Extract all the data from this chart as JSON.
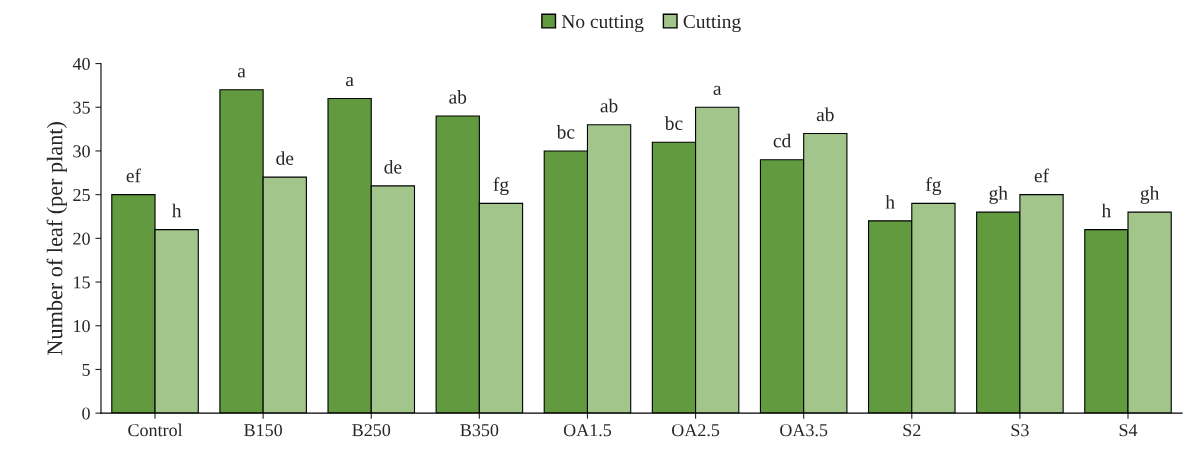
{
  "chart_data": {
    "type": "bar",
    "categories": [
      "Control",
      "B150",
      "B250",
      "B350",
      "OA1.5",
      "OA2.5",
      "OA3.5",
      "S2",
      "S3",
      "S4"
    ],
    "series": [
      {
        "name": "No cutting",
        "color": "#629a40",
        "values": [
          25,
          37,
          36,
          34,
          30,
          31,
          29,
          22,
          23,
          21
        ]
      },
      {
        "name": "Cutting",
        "color": "#a2c58b",
        "values": [
          21,
          27,
          26,
          24,
          33,
          35,
          32,
          24,
          25,
          23
        ]
      }
    ],
    "ylabel": "Number of leaf (per plant)",
    "ylim": [
      0,
      40
    ],
    "yticks": [
      0,
      5,
      10,
      15,
      20,
      25,
      30,
      35,
      40
    ],
    "annotations": [
      {
        "text": "ef",
        "x": "Control",
        "y": 25
      },
      {
        "text": "h",
        "x": "Control",
        "y": 21
      },
      {
        "text": "a",
        "x": "B150",
        "y": 37
      },
      {
        "text": "de",
        "x": "B150",
        "y": 27
      },
      {
        "text": "a",
        "x": "B250",
        "y": 36
      },
      {
        "text": "de",
        "x": "B250",
        "y": 26
      },
      {
        "text": "ab",
        "x": "B350",
        "y": 34
      },
      {
        "text": "fg",
        "x": "B350",
        "y": 24
      },
      {
        "text": "bc",
        "x": "OA1.5",
        "y": 30
      },
      {
        "text": "ab",
        "x": "OA1.5",
        "y": 33
      },
      {
        "text": "bc",
        "x": "OA2.5",
        "y": 31
      },
      {
        "text": "a",
        "x": "OA2.5",
        "y": 35
      },
      {
        "text": "cd",
        "x": "OA3.5",
        "y": 29
      },
      {
        "text": "ab",
        "x": "OA3.5",
        "y": 32
      },
      {
        "text": "h",
        "x": "S2",
        "y": 22
      },
      {
        "text": "fg",
        "x": "S2",
        "y": 24
      },
      {
        "text": "gh",
        "x": "S3",
        "y": 23
      },
      {
        "text": "ef",
        "x": "S3",
        "y": 25
      },
      {
        "text": "h",
        "x": "S4",
        "y": 21
      },
      {
        "text": "gh",
        "x": "S4",
        "y": 23
      }
    ],
    "legend": "top",
    "grid": false
  }
}
